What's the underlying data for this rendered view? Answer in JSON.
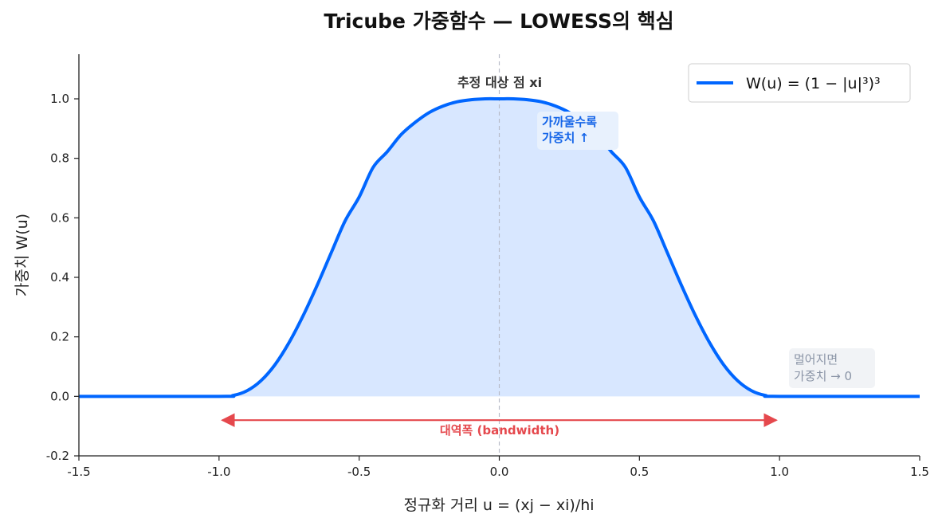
{
  "chart_data": {
    "type": "line",
    "title": "Tricube 가중함수 — LOWESS의 핵심",
    "xlabel": "정규화 거리 u = (xj − xi)/hi",
    "ylabel": "가중치 W(u)",
    "xlim": [
      -1.5,
      1.5
    ],
    "ylim": [
      -0.2,
      1.15
    ],
    "x_ticks": [
      -1.5,
      -1.0,
      -0.5,
      0.0,
      0.5,
      1.0,
      1.5
    ],
    "x_tick_labels": [
      "-1.5",
      "-1.0",
      "-0.5",
      "0.0",
      "0.5",
      "1.0",
      "1.5"
    ],
    "y_ticks": [
      -0.2,
      0.0,
      0.2,
      0.4,
      0.6,
      0.8,
      1.0
    ],
    "y_tick_labels": [
      "-0.2",
      "0.0",
      "0.2",
      "0.4",
      "0.6",
      "0.8",
      "1.0"
    ],
    "grid": false,
    "legend_position": "top-right",
    "series": [
      {
        "name": "W(u) = (1 − |u|³)³",
        "color": "#0066ff",
        "fill_color": "#d6e6ff",
        "x": [
          -1.5,
          -1.0,
          -0.95,
          -0.9,
          -0.85,
          -0.8,
          -0.75,
          -0.7,
          -0.65,
          -0.6,
          -0.55,
          -0.5,
          -0.45,
          -0.4,
          -0.35,
          -0.3,
          -0.25,
          -0.2,
          -0.15,
          -0.1,
          -0.05,
          0.0,
          0.05,
          0.1,
          0.15,
          0.2,
          0.25,
          0.3,
          0.35,
          0.4,
          0.45,
          0.5,
          0.55,
          0.6,
          0.65,
          0.7,
          0.75,
          0.8,
          0.85,
          0.9,
          0.95,
          1.0,
          1.5
        ],
        "y": [
          0.0,
          0.0,
          0.003,
          0.019,
          0.053,
          0.107,
          0.181,
          0.271,
          0.373,
          0.482,
          0.59,
          0.67,
          0.77,
          0.822,
          0.88,
          0.921,
          0.954,
          0.976,
          0.99,
          0.997,
          1.0,
          1.0,
          1.0,
          0.997,
          0.99,
          0.976,
          0.954,
          0.921,
          0.88,
          0.822,
          0.77,
          0.67,
          0.59,
          0.482,
          0.373,
          0.271,
          0.181,
          0.107,
          0.053,
          0.019,
          0.003,
          0.0,
          0.0
        ]
      }
    ],
    "reference_line": {
      "x": 0.0,
      "color": "#b8bcc8"
    },
    "annotations": {
      "center_point": "추정 대상 점 xi",
      "closer_line1": "가까울수록",
      "closer_line2": "가중치 ↑",
      "farther_line1": "멀어지면",
      "farther_line2": "가중치 → 0",
      "bandwidth": "대역폭 (bandwidth)"
    },
    "bandwidth_range": [
      -1.0,
      1.0
    ],
    "colors": {
      "bandwidth": "#e5484d",
      "closer_box": "#e8f1fd",
      "farther_box": "#f1f3f6"
    }
  }
}
